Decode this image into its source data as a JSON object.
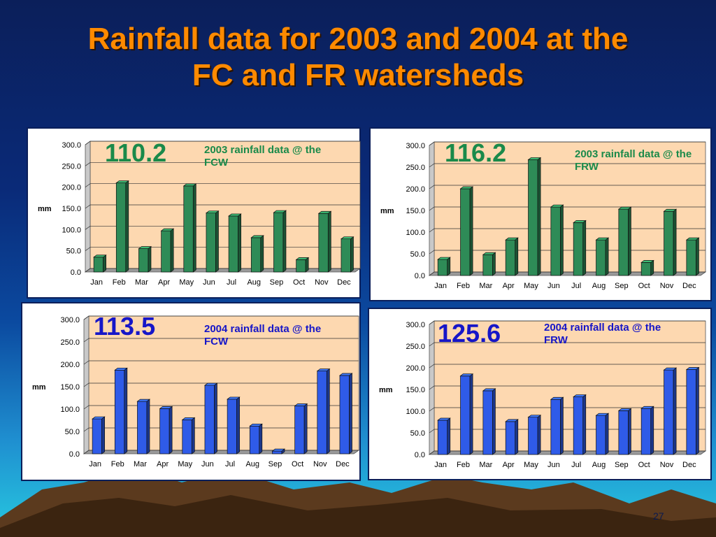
{
  "slide": {
    "title_line1": "Rainfall data for 2003 and 2004 at the",
    "title_line2": "FC and FR watersheds",
    "page_number": "27"
  },
  "colors": {
    "plot_bg": "#fdd8b0",
    "bar_2003": "#2e8b57",
    "bar_2004": "#2f5be8",
    "label_2003": "#1a8a4a",
    "label_2004": "#1616c8"
  },
  "chart_data": [
    {
      "type": "bar",
      "title": "2003 rainfall data @ the FCW",
      "total_label": "110.2",
      "ylabel": "mm",
      "ylim": [
        0,
        300
      ],
      "ytick_labels": [
        "0.0",
        "50.0",
        "100.0",
        "150.0",
        "200.0",
        "250.0",
        "300.0"
      ],
      "categories": [
        "Jan",
        "Feb",
        "Mar",
        "Apr",
        "May",
        "Jun",
        "Jul",
        "Aug",
        "Sep",
        "Oct",
        "Nov",
        "Dec"
      ],
      "values": [
        35,
        210,
        55,
        97,
        203,
        139,
        132,
        81,
        140,
        29,
        138,
        78
      ],
      "grid": true
    },
    {
      "type": "bar",
      "title": "2003 rainfall data @ the FRW",
      "total_label": "116.2",
      "ylabel": "mm",
      "ylim": [
        0,
        300
      ],
      "ytick_labels": [
        "0.0",
        "50.0",
        "100.0",
        "150.0",
        "200.0",
        "250.0",
        "300.0"
      ],
      "categories": [
        "Jan",
        "Feb",
        "Mar",
        "Apr",
        "May",
        "Jun",
        "Jul",
        "Aug",
        "Sep",
        "Oct",
        "Nov",
        "Dec"
      ],
      "values": [
        37,
        200,
        48,
        82,
        267,
        158,
        122,
        82,
        153,
        30,
        148,
        82
      ],
      "grid": true
    },
    {
      "type": "bar",
      "title": "2004 rainfall data @ the FCW",
      "total_label": "113.5",
      "ylabel": "mm",
      "ylim": [
        0,
        300
      ],
      "ytick_labels": [
        "0.0",
        "50.0",
        "100.0",
        "150.0",
        "200.0",
        "250.0",
        "300.0"
      ],
      "categories": [
        "Jan",
        "Feb",
        "Mar",
        "Apr",
        "May",
        "Jun",
        "Jul",
        "Aug",
        "Sep",
        "Oct",
        "Nov",
        "Dec"
      ],
      "values": [
        78,
        187,
        117,
        101,
        76,
        153,
        122,
        62,
        6,
        107,
        185,
        175
      ],
      "grid": true
    },
    {
      "type": "bar",
      "title": "2004 rainfall data @ the FRW",
      "total_label": "125.6",
      "ylabel": "mm",
      "ylim": [
        0,
        300
      ],
      "ytick_labels": [
        "0.0",
        "50.0",
        "100.0",
        "150.0",
        "200.0",
        "250.0",
        "300.0"
      ],
      "categories": [
        "Jan",
        "Feb",
        "Mar",
        "Apr",
        "May",
        "Jun",
        "Jul",
        "Aug",
        "Sep",
        "Oct",
        "Nov",
        "Dec"
      ],
      "values": [
        79,
        181,
        147,
        76,
        86,
        127,
        133,
        90,
        101,
        106,
        195,
        196
      ],
      "grid": true
    }
  ]
}
